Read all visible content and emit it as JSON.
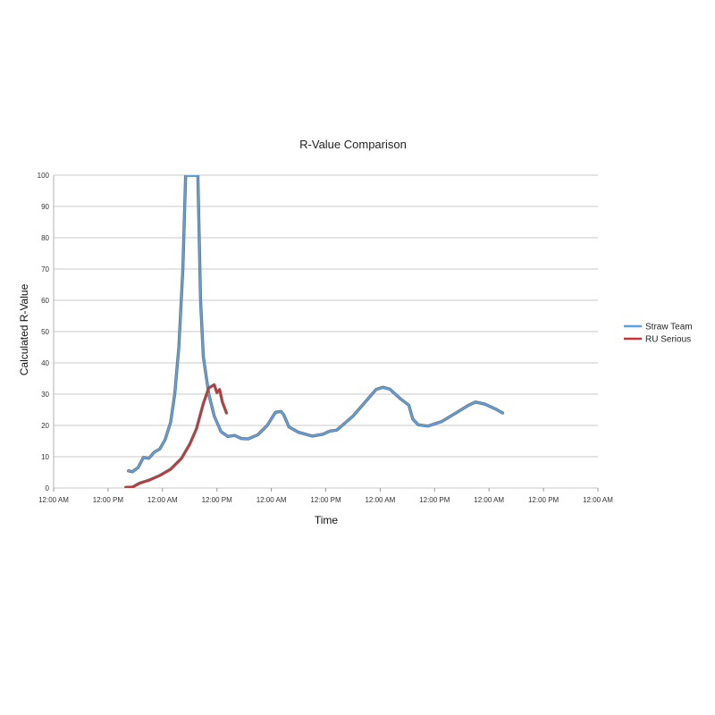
{
  "chart_data": {
    "type": "line",
    "title": "R-Value Comparison",
    "xlabel": "Time",
    "ylabel": "Calculated R-Value",
    "ylim": [
      0,
      100
    ],
    "xlim": [
      0,
      4
    ],
    "y_ticks": [
      "0",
      "10",
      "20",
      "30",
      "40",
      "50",
      "60",
      "70",
      "80",
      "90",
      "100"
    ],
    "x_ticks": [
      "12:00 AM",
      "12:00 PM",
      "12:00 AM",
      "12:00 PM",
      "12:00 AM",
      "12:00 PM",
      "12:00 AM",
      "12:00 PM",
      "12:00 AM",
      "12:00 PM",
      "12:00 AM"
    ],
    "grid": true,
    "legend_position": "right",
    "series": [
      {
        "name": "Straw Team",
        "color": "#5aa0e6",
        "points": [
          [
            0.55,
            5.5
          ],
          [
            0.58,
            5.2
          ],
          [
            0.62,
            6.5
          ],
          [
            0.66,
            9.8
          ],
          [
            0.7,
            9.5
          ],
          [
            0.74,
            11.5
          ],
          [
            0.78,
            12.5
          ],
          [
            0.82,
            15.5
          ],
          [
            0.86,
            21
          ],
          [
            0.89,
            30
          ],
          [
            0.92,
            45
          ],
          [
            0.95,
            70
          ],
          [
            0.97,
            100
          ],
          [
            1.06,
            100
          ],
          [
            1.08,
            60
          ],
          [
            1.1,
            42
          ],
          [
            1.14,
            30
          ],
          [
            1.18,
            23
          ],
          [
            1.23,
            18
          ],
          [
            1.28,
            16.5
          ],
          [
            1.33,
            16.8
          ],
          [
            1.38,
            15.8
          ],
          [
            1.43,
            15.7
          ],
          [
            1.5,
            17
          ],
          [
            1.57,
            20
          ],
          [
            1.63,
            24.2
          ],
          [
            1.67,
            24.5
          ],
          [
            1.69,
            23.5
          ],
          [
            1.73,
            19.5
          ],
          [
            1.8,
            17.8
          ],
          [
            1.9,
            16.6
          ],
          [
            1.98,
            17.2
          ],
          [
            2.03,
            18.2
          ],
          [
            2.08,
            18.5
          ],
          [
            2.2,
            23
          ],
          [
            2.3,
            28
          ],
          [
            2.37,
            31.5
          ],
          [
            2.42,
            32.2
          ],
          [
            2.47,
            31.6
          ],
          [
            2.55,
            28.5
          ],
          [
            2.61,
            26.5
          ],
          [
            2.64,
            22
          ],
          [
            2.68,
            20.2
          ],
          [
            2.75,
            19.8
          ],
          [
            2.85,
            21.2
          ],
          [
            2.95,
            23.8
          ],
          [
            3.05,
            26.5
          ],
          [
            3.1,
            27.5
          ],
          [
            3.17,
            26.8
          ],
          [
            3.25,
            25.2
          ],
          [
            3.3,
            24
          ]
        ]
      },
      {
        "name": "RU Serious",
        "color": "#cc3333",
        "points": [
          [
            0.53,
            0.2
          ],
          [
            0.58,
            0.3
          ],
          [
            0.63,
            1.5
          ],
          [
            0.7,
            2.5
          ],
          [
            0.78,
            4
          ],
          [
            0.86,
            6
          ],
          [
            0.94,
            9.5
          ],
          [
            1.0,
            14
          ],
          [
            1.05,
            19
          ],
          [
            1.1,
            27
          ],
          [
            1.14,
            32
          ],
          [
            1.16,
            32.5
          ],
          [
            1.18,
            33
          ],
          [
            1.2,
            30.5
          ],
          [
            1.22,
            31.5
          ],
          [
            1.24,
            27.5
          ],
          [
            1.27,
            24
          ]
        ]
      }
    ]
  }
}
